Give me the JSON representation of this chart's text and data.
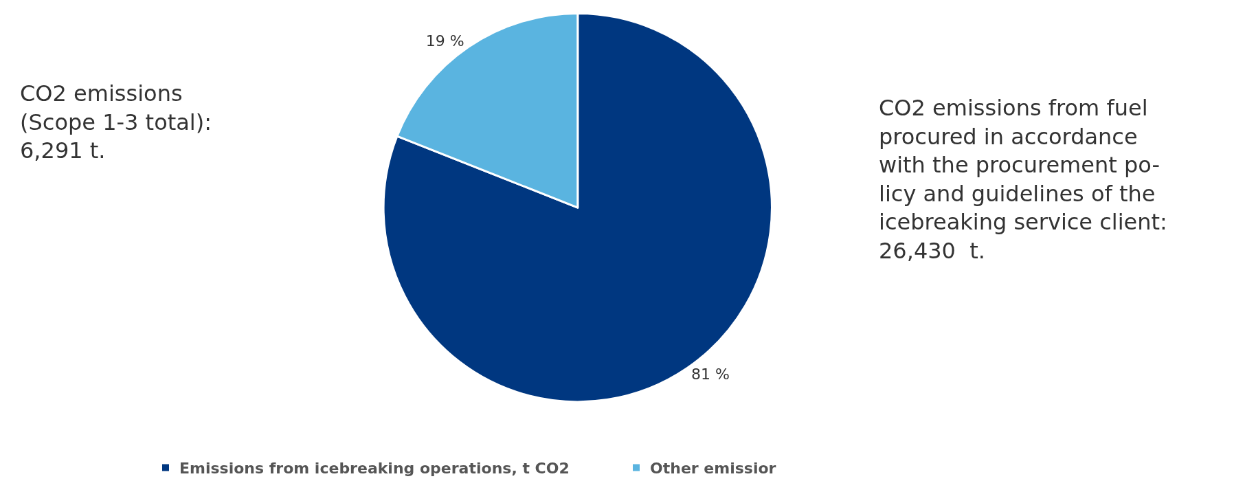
{
  "chart_data": {
    "type": "pie",
    "categories": [
      "Emissions from icebreaking operations, t CO2",
      "Other emissior"
    ],
    "values": [
      81,
      19
    ],
    "value_labels": [
      "81 %",
      "19 %"
    ],
    "colors": [
      "#003780",
      "#5ab4e0"
    ],
    "legend": "bottom",
    "annotations": [
      "CO2 emissions\n(Scope 1-3 total):\n6,291 t.",
      "CO2 emissions from fuel\nprocured in accordance\nwith the procurement po-\nlicy and guidelines of the\nicebreaking service client:\n26,430  t."
    ]
  }
}
